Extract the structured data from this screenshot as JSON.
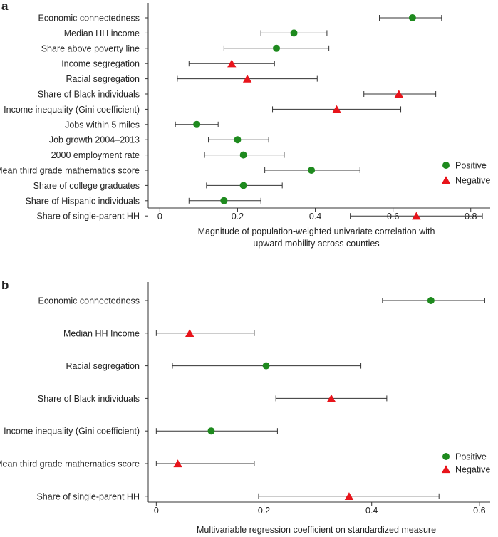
{
  "chart_data": [
    {
      "type": "scatter",
      "panel": "a",
      "xlabel": "Magnitude of population-weighted univariate correlation with upward mobility across counties",
      "xlabel_lines": [
        "Magnitude of population-weighted univariate correlation with",
        "upward mobility across counties"
      ],
      "xlim": [
        -0.03,
        0.85
      ],
      "xticks": [
        0,
        0.2,
        0.4,
        0.6,
        0.8
      ],
      "xtick_labels": [
        "0",
        "0.2",
        "0.4",
        "0.6",
        "0.8"
      ],
      "grid": false,
      "legend_placement": "right",
      "legend": [
        {
          "name": "Positive",
          "marker": "circle",
          "color": "#1e8a1e"
        },
        {
          "name": "Negative",
          "marker": "triangle",
          "color": "#e8141b"
        }
      ],
      "points": [
        {
          "label": "Economic connectedness",
          "value": 0.65,
          "ci": [
            0.565,
            0.725
          ],
          "sign": "Positive"
        },
        {
          "label": "Median HH income",
          "value": 0.345,
          "ci": [
            0.26,
            0.43
          ],
          "sign": "Positive"
        },
        {
          "label": "Share above poverty line",
          "value": 0.3,
          "ci": [
            0.165,
            0.435
          ],
          "sign": "Positive"
        },
        {
          "label": "Income segregation",
          "value": 0.185,
          "ci": [
            0.075,
            0.295
          ],
          "sign": "Negative"
        },
        {
          "label": "Racial segregation",
          "value": 0.225,
          "ci": [
            0.045,
            0.405
          ],
          "sign": "Negative"
        },
        {
          "label": "Share of Black individuals",
          "value": 0.615,
          "ci": [
            0.525,
            0.71
          ],
          "sign": "Negative"
        },
        {
          "label": "Income inequality (Gini coefficient)",
          "value": 0.455,
          "ci": [
            0.29,
            0.62
          ],
          "sign": "Negative"
        },
        {
          "label": "Jobs within 5 miles",
          "value": 0.095,
          "ci": [
            0.04,
            0.15
          ],
          "sign": "Positive"
        },
        {
          "label": "Job growth 2004–2013",
          "value": 0.2,
          "ci": [
            0.125,
            0.28
          ],
          "sign": "Positive"
        },
        {
          "label": "2000 employment rate",
          "value": 0.215,
          "ci": [
            0.115,
            0.32
          ],
          "sign": "Positive"
        },
        {
          "label": "Mean third grade mathematics score",
          "value": 0.39,
          "ci": [
            0.27,
            0.515
          ],
          "sign": "Positive"
        },
        {
          "label": "Share of college graduates",
          "value": 0.215,
          "ci": [
            0.12,
            0.315
          ],
          "sign": "Positive"
        },
        {
          "label": "Share of Hispanic individuals",
          "value": 0.165,
          "ci": [
            0.075,
            0.26
          ],
          "sign": "Positive"
        },
        {
          "label": "Share of single-parent HH",
          "value": 0.66,
          "ci": [
            0.49,
            0.83
          ],
          "sign": "Negative"
        }
      ]
    },
    {
      "type": "scatter",
      "panel": "b",
      "xlabel": "Multivariable regression coefficient on standardized measure",
      "xlabel_lines": [
        "Multivariable regression coefficient on standardized measure"
      ],
      "xlim": [
        -0.015,
        0.62
      ],
      "xticks": [
        0,
        0.2,
        0.4,
        0.6
      ],
      "xtick_labels": [
        "0",
        "0.2",
        "0.4",
        "0.6"
      ],
      "grid": false,
      "legend_placement": "right",
      "legend": [
        {
          "name": "Positive",
          "marker": "circle",
          "color": "#1e8a1e"
        },
        {
          "name": "Negative",
          "marker": "triangle",
          "color": "#e8141b"
        }
      ],
      "points": [
        {
          "label": "Economic connectedness",
          "value": 0.51,
          "ci": [
            0.42,
            0.61
          ],
          "sign": "Positive"
        },
        {
          "label": "Median HH Income",
          "value": 0.062,
          "ci": [
            0.0,
            0.182
          ],
          "sign": "Negative"
        },
        {
          "label": "Racial segregation",
          "value": 0.204,
          "ci": [
            0.03,
            0.38
          ],
          "sign": "Positive"
        },
        {
          "label": "Share of Black individuals",
          "value": 0.325,
          "ci": [
            0.222,
            0.428
          ],
          "sign": "Negative"
        },
        {
          "label": "Income inequality (Gini coefficient)",
          "value": 0.102,
          "ci": [
            0.0,
            0.225
          ],
          "sign": "Positive"
        },
        {
          "label": "Mean third grade mathematics score",
          "value": 0.04,
          "ci": [
            0.0,
            0.182
          ],
          "sign": "Negative"
        },
        {
          "label": "Share of single-parent HH",
          "value": 0.358,
          "ci": [
            0.19,
            0.525
          ],
          "sign": "Negative"
        }
      ]
    }
  ]
}
